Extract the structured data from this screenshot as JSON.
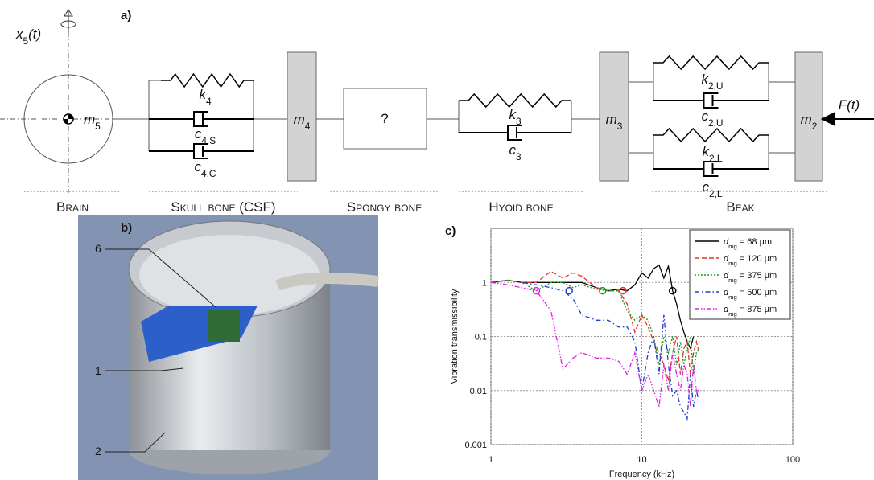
{
  "diagram": {
    "label": "a)",
    "symbols": {
      "x5": {
        "base": "x",
        "sub": "5",
        "tail": "(t)"
      },
      "m5": {
        "base": "m",
        "sub": "5"
      },
      "k4": {
        "base": "k",
        "sub": "4"
      },
      "c4s": {
        "base": "c",
        "sub": "4,S"
      },
      "c4c": {
        "base": "c",
        "sub": "4,C"
      },
      "m4": {
        "base": "m",
        "sub": "4"
      },
      "k3": {
        "base": "k",
        "sub": "3"
      },
      "c3": {
        "base": "c",
        "sub": "3"
      },
      "m3": {
        "base": "m",
        "sub": "3"
      },
      "k2u": {
        "base": "k",
        "sub": "2,U"
      },
      "c2u": {
        "base": "c",
        "sub": "2,U"
      },
      "k2l": {
        "base": "k",
        "sub": "2,L"
      },
      "c2l": {
        "base": "c",
        "sub": "2,L"
      },
      "m2": {
        "base": "m",
        "sub": "2"
      },
      "F": {
        "base": "F(t)"
      }
    },
    "unknown": "?",
    "sections": [
      "Brain",
      "Skull bone (CSF)",
      "Spongy bone",
      "Hyoid bone",
      "Beak"
    ]
  },
  "photo": {
    "label": "b)",
    "callouts": [
      "6",
      "1",
      "2"
    ]
  },
  "chart_data": {
    "type": "line",
    "label": "c)",
    "x_label": "Frequency (kHz)",
    "y_label": "Vibration transmissibility",
    "xlim": [
      1,
      100
    ],
    "ylim": [
      0.001,
      10
    ],
    "xticks": [
      1,
      10,
      100
    ],
    "yticks": [
      0.001,
      0.01,
      0.1,
      1
    ],
    "log_x": true,
    "log_y": true,
    "grid": true,
    "legend": "upper right",
    "legend_prefix": {
      "base": "d",
      "sub": "mg"
    },
    "x": [
      1,
      1.3,
      1.6,
      2,
      2.5,
      3,
      3.5,
      4,
      5,
      6,
      7,
      8,
      9,
      10,
      11,
      12,
      13,
      14,
      15,
      16,
      17,
      18,
      19,
      20,
      21,
      22,
      23,
      24
    ],
    "series": [
      {
        "name": "= 68 µm",
        "color": "#000000",
        "style": "solid",
        "values": [
          1,
          1.1,
          1,
          1,
          1,
          1,
          1,
          1,
          0.8,
          0.7,
          0.75,
          0.7,
          0.9,
          1.5,
          1.2,
          1.8,
          2.1,
          1.2,
          2,
          0.7,
          0.4,
          0.2,
          0.12,
          0.08,
          0.06,
          0.1,
          null,
          null
        ],
        "marker": {
          "x": 16,
          "y": 0.7
        }
      },
      {
        "name": "= 120 µm",
        "color": "#e8322b",
        "style": "dashed",
        "values": [
          1,
          1.1,
          1,
          1,
          1.6,
          1.2,
          1.5,
          1.3,
          0.8,
          0.7,
          0.7,
          0.4,
          0.12,
          0.25,
          0.15,
          0.08,
          0.05,
          0.03,
          0.015,
          0.05,
          0.1,
          0.02,
          0.06,
          0.08,
          0.02,
          0.05,
          0.08,
          0.05
        ],
        "marker": {
          "x": 7.5,
          "y": 0.7
        }
      },
      {
        "name": "= 375 µm",
        "color": "#1a9a1a",
        "style": "dotted",
        "values": [
          1,
          1.1,
          1,
          0.7,
          1,
          1,
          0.8,
          0.9,
          0.75,
          0.7,
          0.7,
          0.3,
          0.2,
          0.25,
          0.2,
          0.1,
          0.03,
          0.1,
          0.05,
          0.1,
          0.03,
          0.08,
          0.03,
          0.06,
          0.1,
          0.02,
          0.05,
          0.06
        ],
        "marker": {
          "x": 5.5,
          "y": 0.7
        }
      },
      {
        "name": "= 500 µm",
        "color": "#1f3fd0",
        "style": "dashdot",
        "values": [
          1,
          1.1,
          1,
          0.9,
          0.8,
          0.7,
          0.5,
          0.25,
          0.2,
          0.2,
          0.15,
          0.15,
          0.08,
          0.01,
          0.05,
          0.1,
          0.02,
          0.25,
          0.03,
          0.008,
          0.01,
          0.005,
          0.004,
          0.003,
          0.02,
          0.005,
          0.01,
          0.006
        ],
        "marker": {
          "x": 3.3,
          "y": 0.7
        }
      },
      {
        "name": "= 875 µm",
        "color": "#e020e0",
        "style": "dashdotdot",
        "values": [
          1,
          0.9,
          0.8,
          0.7,
          0.3,
          0.025,
          0.04,
          0.05,
          0.04,
          0.04,
          0.035,
          0.02,
          0.05,
          0.01,
          0.02,
          0.01,
          0.005,
          0.03,
          0.01,
          0.05,
          0.02,
          0.01,
          0.03,
          0.02,
          0.005,
          0.03,
          0.01,
          0.01
        ],
        "marker": {
          "x": 2,
          "y": 0.7
        }
      }
    ]
  }
}
